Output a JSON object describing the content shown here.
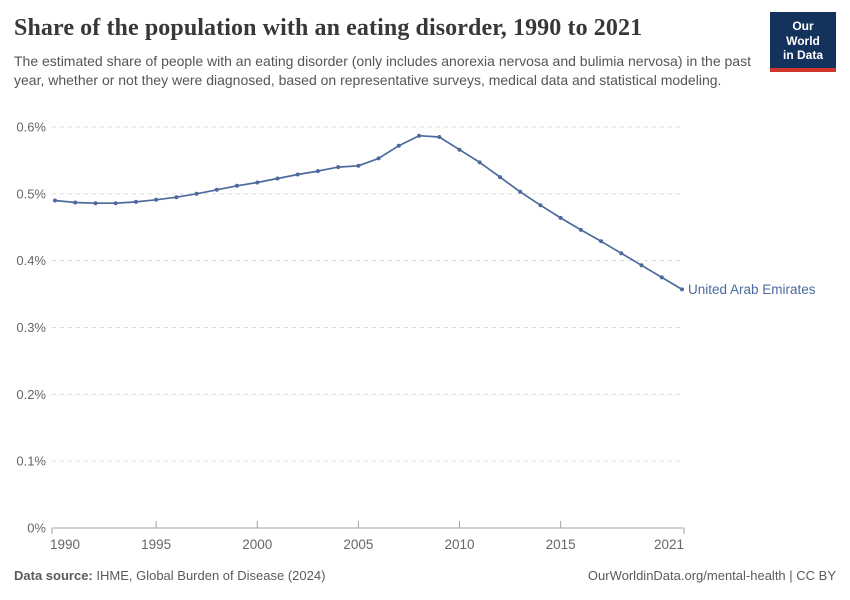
{
  "header": {
    "title": "Share of the population with an eating disorder, 1990 to 2021",
    "subtitle": "The estimated share of people with an eating disorder (only includes anorexia nervosa and bulimia nervosa) in the past year, whether or not they were diagnosed, based on representative surveys, medical data and statistical modeling."
  },
  "logo": {
    "line1": "Our World",
    "line2": "in Data",
    "navy": "#14335c",
    "red": "#d0352c"
  },
  "footer": {
    "source_label": "Data source:",
    "source_value": " IHME, Global Burden of Disease (2024)",
    "credit": "OurWorldinData.org/mental-health | CC BY"
  },
  "colors": {
    "line_blue": "#4c6a9c",
    "gridline": "#dcdcdc",
    "axis": "#a1a1a1",
    "tick_label": "#666666"
  },
  "chart_data": {
    "type": "line",
    "title": "Share of the population with an eating disorder, 1990 to 2021",
    "xlabel": "",
    "ylabel": "",
    "unit": "%",
    "grid": "horizontal-dashed",
    "legend_position": "end-of-line-label",
    "x_range": [
      1990,
      2021
    ],
    "ylim": [
      0,
      0.6
    ],
    "x": [
      1990,
      1991,
      1992,
      1993,
      1994,
      1995,
      1996,
      1997,
      1998,
      1999,
      2000,
      2001,
      2002,
      2003,
      2004,
      2005,
      2006,
      2007,
      2008,
      2009,
      2010,
      2011,
      2012,
      2013,
      2014,
      2015,
      2016,
      2017,
      2018,
      2019,
      2020,
      2021
    ],
    "series": [
      {
        "name": "United Arab Emirates",
        "color": "#4c6a9c",
        "values": [
          0.49,
          0.487,
          0.486,
          0.486,
          0.488,
          0.491,
          0.495,
          0.5,
          0.506,
          0.512,
          0.517,
          0.523,
          0.529,
          0.534,
          0.54,
          0.542,
          0.553,
          0.572,
          0.587,
          0.585,
          0.566,
          0.547,
          0.525,
          0.503,
          0.483,
          0.464,
          0.446,
          0.429,
          0.411,
          0.393,
          0.375,
          0.357
        ]
      }
    ],
    "y_ticks": [
      {
        "value": 0,
        "label": "0%"
      },
      {
        "value": 0.1,
        "label": "0.1%"
      },
      {
        "value": 0.2,
        "label": "0.2%"
      },
      {
        "value": 0.3,
        "label": "0.3%"
      },
      {
        "value": 0.4,
        "label": "0.4%"
      },
      {
        "value": 0.5,
        "label": "0.5%"
      },
      {
        "value": 0.6,
        "label": "0.6%"
      }
    ],
    "x_ticks": [
      {
        "value": 1990,
        "label": "1990"
      },
      {
        "value": 1995,
        "label": "1995"
      },
      {
        "value": 2000,
        "label": "2000"
      },
      {
        "value": 2005,
        "label": "2005"
      },
      {
        "value": 2010,
        "label": "2010"
      },
      {
        "value": 2015,
        "label": "2015"
      },
      {
        "value": 2021,
        "label": "2021"
      }
    ]
  }
}
